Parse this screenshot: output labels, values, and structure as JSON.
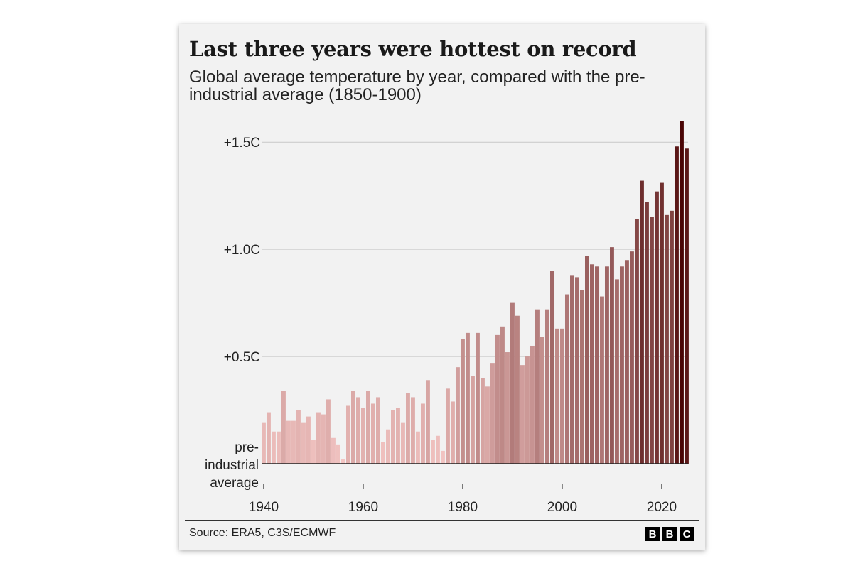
{
  "chart_data": {
    "type": "bar",
    "title": "Last three years were hottest on record",
    "subtitle": "Global average temperature by year, compared with the pre-industrial average (1850-1900)",
    "units": "C",
    "x": [
      1940,
      1941,
      1942,
      1943,
      1944,
      1945,
      1946,
      1947,
      1948,
      1949,
      1950,
      1951,
      1952,
      1953,
      1954,
      1955,
      1956,
      1957,
      1958,
      1959,
      1960,
      1961,
      1962,
      1963,
      1964,
      1965,
      1966,
      1967,
      1968,
      1969,
      1970,
      1971,
      1972,
      1973,
      1974,
      1975,
      1976,
      1977,
      1978,
      1979,
      1980,
      1981,
      1982,
      1983,
      1984,
      1985,
      1986,
      1987,
      1988,
      1989,
      1990,
      1991,
      1992,
      1993,
      1994,
      1995,
      1996,
      1997,
      1998,
      1999,
      2000,
      2001,
      2002,
      2003,
      2004,
      2005,
      2006,
      2007,
      2008,
      2009,
      2010,
      2011,
      2012,
      2013,
      2014,
      2015,
      2016,
      2017,
      2018,
      2019,
      2020,
      2021,
      2022,
      2023,
      2024,
      2025
    ],
    "values": [
      0.19,
      0.24,
      0.15,
      0.15,
      0.34,
      0.2,
      0.2,
      0.25,
      0.19,
      0.22,
      0.11,
      0.24,
      0.23,
      0.3,
      0.12,
      0.09,
      0.02,
      0.27,
      0.34,
      0.31,
      0.26,
      0.34,
      0.28,
      0.31,
      0.1,
      0.16,
      0.25,
      0.26,
      0.19,
      0.33,
      0.31,
      0.15,
      0.28,
      0.39,
      0.11,
      0.13,
      0.06,
      0.35,
      0.29,
      0.45,
      0.58,
      0.61,
      0.41,
      0.61,
      0.4,
      0.36,
      0.47,
      0.6,
      0.64,
      0.52,
      0.75,
      0.69,
      0.46,
      0.5,
      0.55,
      0.72,
      0.59,
      0.72,
      0.9,
      0.63,
      0.63,
      0.79,
      0.88,
      0.87,
      0.81,
      0.97,
      0.93,
      0.92,
      0.78,
      0.92,
      1.01,
      0.86,
      0.92,
      0.95,
      0.99,
      1.14,
      1.32,
      1.22,
      1.15,
      1.27,
      1.31,
      1.16,
      1.18,
      1.48,
      1.6,
      1.47
    ],
    "ylim": [
      0,
      1.62
    ],
    "yticks": [
      {
        "value": 1.5,
        "label": "+1.5C"
      },
      {
        "value": 1.0,
        "label": "+1.0C"
      },
      {
        "value": 0.5,
        "label": "+0.5C"
      }
    ],
    "baseline_label": [
      "pre-",
      "industrial",
      "average"
    ],
    "xticks": [
      1940,
      1960,
      1980,
      2000,
      2020
    ],
    "grid": true,
    "bar_color_low": "#f4c6c4",
    "bar_color_high": "#4a0505"
  },
  "footer": {
    "source": "Source: ERA5, C3S/ECMWF",
    "logo": [
      "B",
      "B",
      "C"
    ]
  }
}
